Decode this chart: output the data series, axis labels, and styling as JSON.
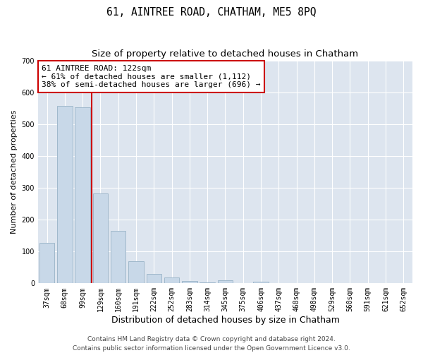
{
  "title": "61, AINTREE ROAD, CHATHAM, ME5 8PQ",
  "subtitle": "Size of property relative to detached houses in Chatham",
  "xlabel": "Distribution of detached houses by size in Chatham",
  "ylabel": "Number of detached properties",
  "categories": [
    "37sqm",
    "68sqm",
    "99sqm",
    "129sqm",
    "160sqm",
    "191sqm",
    "222sqm",
    "252sqm",
    "283sqm",
    "314sqm",
    "345sqm",
    "375sqm",
    "406sqm",
    "437sqm",
    "468sqm",
    "498sqm",
    "529sqm",
    "560sqm",
    "591sqm",
    "621sqm",
    "652sqm"
  ],
  "bar_values": [
    127,
    557,
    553,
    283,
    165,
    70,
    30,
    18,
    8,
    3,
    10,
    0,
    5,
    0,
    0,
    0,
    0,
    0,
    0,
    0,
    0
  ],
  "bar_color": "#c8d8e8",
  "bar_edgecolor": "#a0b8cc",
  "vline_color": "#cc0000",
  "annotation_text": "61 AINTREE ROAD: 122sqm\n← 61% of detached houses are smaller (1,112)\n38% of semi-detached houses are larger (696) →",
  "annotation_box_facecolor": "#ffffff",
  "annotation_box_edgecolor": "#cc0000",
  "ylim": [
    0,
    700
  ],
  "yticks": [
    0,
    100,
    200,
    300,
    400,
    500,
    600,
    700
  ],
  "background_color": "#dde5ef",
  "grid_color": "#ffffff",
  "fig_background": "#ffffff",
  "footer_text": "Contains HM Land Registry data © Crown copyright and database right 2024.\nContains public sector information licensed under the Open Government Licence v3.0.",
  "title_fontsize": 10.5,
  "subtitle_fontsize": 9.5,
  "xlabel_fontsize": 9,
  "ylabel_fontsize": 8,
  "tick_fontsize": 7,
  "annotation_fontsize": 8,
  "footer_fontsize": 6.5
}
